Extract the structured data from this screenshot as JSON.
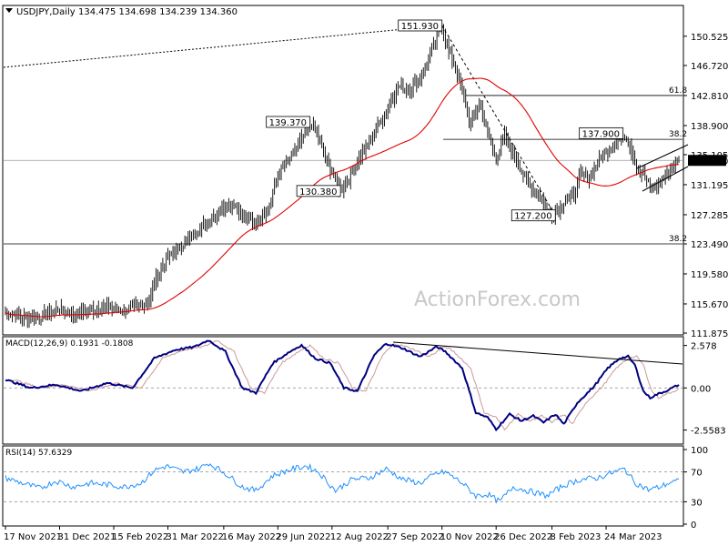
{
  "header": {
    "title": "USDJPY,Daily",
    "ohlc": "134.475 134.698 134.239 134.360"
  },
  "watermark": "ActionForex.com",
  "chart_data": {
    "type": "candlestick",
    "title": "USDJPY,Daily",
    "colors": {
      "price": "#000000",
      "ma": "#e00000",
      "macd": "#000080",
      "signal": "#cc9999",
      "rsi": "#1e90ff",
      "current": "#000000"
    },
    "x_ticks": [
      "17 Nov 2021",
      "31 Dec 2021",
      "15 Feb 2022",
      "31 Mar 2022",
      "16 May 2022",
      "29 Jun 2022",
      "12 Aug 2022",
      "27 Sep 2022",
      "10 Nov 2022",
      "26 Dec 2022",
      "8 Feb 2023",
      "24 Mar 2023"
    ],
    "price_axis": {
      "ticks": [
        "150.525",
        "146.720",
        "142.810",
        "138.900",
        "135.105",
        "131.195",
        "127.285",
        "123.490",
        "119.580",
        "115.670",
        "111.875"
      ],
      "ylim": [
        111.875,
        154.3
      ]
    },
    "price_keypoints": [
      [
        0,
        114.5
      ],
      [
        10,
        114.0
      ],
      [
        20,
        113.8
      ],
      [
        30,
        115.0
      ],
      [
        40,
        114.3
      ],
      [
        50,
        114.9
      ],
      [
        60,
        115.3
      ],
      [
        70,
        114.8
      ],
      [
        80,
        115.5
      ],
      [
        85,
        116.0
      ],
      [
        88,
        118.5
      ],
      [
        95,
        121.5
      ],
      [
        100,
        122.5
      ],
      [
        108,
        124.0
      ],
      [
        112,
        125.0
      ],
      [
        120,
        126.5
      ],
      [
        128,
        128.0
      ],
      [
        135,
        128.8
      ],
      [
        140,
        127.2
      ],
      [
        148,
        126.3
      ],
      [
        155,
        128.0
      ],
      [
        162,
        133.0
      ],
      [
        168,
        134.5
      ],
      [
        175,
        137.0
      ],
      [
        180,
        139.37
      ],
      [
        185,
        137.5
      ],
      [
        190,
        134.0
      ],
      [
        195,
        132.0
      ],
      [
        198,
        130.38
      ],
      [
        203,
        132.0
      ],
      [
        210,
        135.0
      ],
      [
        218,
        137.8
      ],
      [
        225,
        141.0
      ],
      [
        232,
        144.0
      ],
      [
        238,
        143.5
      ],
      [
        244,
        144.7
      ],
      [
        250,
        147.5
      ],
      [
        255,
        150.5
      ],
      [
        258,
        151.93
      ],
      [
        262,
        148.5
      ],
      [
        266,
        146.5
      ],
      [
        270,
        143.5
      ],
      [
        275,
        139.0
      ],
      [
        280,
        142.0
      ],
      [
        285,
        138.0
      ],
      [
        290,
        134.5
      ],
      [
        295,
        137.5
      ],
      [
        300,
        135.5
      ],
      [
        305,
        133.0
      ],
      [
        310,
        131.0
      ],
      [
        316,
        129.8
      ],
      [
        320,
        127.8
      ],
      [
        325,
        127.2
      ],
      [
        330,
        129.0
      ],
      [
        336,
        130.0
      ],
      [
        340,
        132.5
      ],
      [
        345,
        132.0
      ],
      [
        350,
        134.0
      ],
      [
        355,
        135.5
      ],
      [
        360,
        136.5
      ],
      [
        365,
        137.9
      ],
      [
        369,
        136.5
      ],
      [
        373,
        133.5
      ],
      [
        377,
        132.5
      ],
      [
        381,
        131.0
      ],
      [
        384,
        130.8
      ],
      [
        388,
        131.8
      ],
      [
        392,
        133.0
      ],
      [
        395,
        133.5
      ],
      [
        398,
        134.36
      ]
    ],
    "labels": [
      {
        "text": "151.930",
        "index": 258,
        "value": 151.93,
        "anchor": "left"
      },
      {
        "text": "139.370",
        "index": 180,
        "value": 139.37,
        "anchor": "left"
      },
      {
        "text": "130.380",
        "index": 198,
        "value": 130.38,
        "anchor": "left"
      },
      {
        "text": "137.900",
        "index": 365,
        "value": 137.9,
        "anchor": "left"
      },
      {
        "text": "127.200",
        "index": 325,
        "value": 127.2,
        "anchor": "left"
      }
    ],
    "current_price": "134.360",
    "horizontal_levels": [
      {
        "label": "61.8",
        "value": 142.81
      },
      {
        "label": "38.2",
        "value": 137.1
      },
      {
        "label": "38.2",
        "value": 123.49
      }
    ],
    "macd": {
      "label": "MACD(12,26,9) 0.1931 -0.1808",
      "ticks": [
        "2.578",
        "0.00",
        "-2.5583"
      ],
      "ylim": [
        -3.3,
        3.0
      ],
      "keypoints": [
        [
          0,
          0.5
        ],
        [
          15,
          0
        ],
        [
          30,
          0.2
        ],
        [
          45,
          -0.2
        ],
        [
          60,
          0.3
        ],
        [
          75,
          0
        ],
        [
          88,
          1.8
        ],
        [
          100,
          2.3
        ],
        [
          112,
          2.5
        ],
        [
          120,
          2.9
        ],
        [
          130,
          2.2
        ],
        [
          140,
          0
        ],
        [
          148,
          -0.3
        ],
        [
          158,
          1.5
        ],
        [
          168,
          2.2
        ],
        [
          175,
          2.6
        ],
        [
          183,
          1.8
        ],
        [
          192,
          1.5
        ],
        [
          200,
          0
        ],
        [
          208,
          -0.2
        ],
        [
          218,
          2.0
        ],
        [
          225,
          2.7
        ],
        [
          235,
          2.4
        ],
        [
          245,
          1.9
        ],
        [
          255,
          2.5
        ],
        [
          260,
          2.2
        ],
        [
          270,
          1.2
        ],
        [
          278,
          -1.5
        ],
        [
          285,
          -1.8
        ],
        [
          290,
          -2.5
        ],
        [
          298,
          -1.6
        ],
        [
          305,
          -2.0
        ],
        [
          312,
          -1.7
        ],
        [
          318,
          -2.1
        ],
        [
          325,
          -1.6
        ],
        [
          330,
          -2.2
        ],
        [
          338,
          -0.9
        ],
        [
          348,
          0.1
        ],
        [
          356,
          1.2
        ],
        [
          363,
          1.8
        ],
        [
          368,
          1.9
        ],
        [
          372,
          1.4
        ],
        [
          377,
          -0.2
        ],
        [
          381,
          -0.6
        ],
        [
          385,
          -0.4
        ],
        [
          390,
          -0.2
        ],
        [
          398,
          0.19
        ]
      ],
      "signal_shift": 3
    },
    "rsi": {
      "label": "RSI(14) 57.6329",
      "ticks": [
        "100",
        "70",
        "30",
        "0"
      ],
      "ylim": [
        0,
        100
      ],
      "keypoints": [
        [
          0,
          62
        ],
        [
          10,
          55
        ],
        [
          20,
          48
        ],
        [
          30,
          58
        ],
        [
          40,
          50
        ],
        [
          50,
          55
        ],
        [
          60,
          53
        ],
        [
          70,
          50
        ],
        [
          80,
          55
        ],
        [
          88,
          72
        ],
        [
          95,
          78
        ],
        [
          105,
          70
        ],
        [
          115,
          75
        ],
        [
          120,
          82
        ],
        [
          130,
          68
        ],
        [
          140,
          50
        ],
        [
          148,
          45
        ],
        [
          158,
          65
        ],
        [
          168,
          73
        ],
        [
          178,
          78
        ],
        [
          185,
          70
        ],
        [
          195,
          45
        ],
        [
          205,
          60
        ],
        [
          215,
          62
        ],
        [
          225,
          74
        ],
        [
          235,
          60
        ],
        [
          245,
          55
        ],
        [
          255,
          68
        ],
        [
          260,
          70
        ],
        [
          270,
          55
        ],
        [
          278,
          38
        ],
        [
          285,
          40
        ],
        [
          292,
          30
        ],
        [
          300,
          50
        ],
        [
          310,
          44
        ],
        [
          320,
          38
        ],
        [
          330,
          52
        ],
        [
          340,
          60
        ],
        [
          350,
          62
        ],
        [
          360,
          70
        ],
        [
          366,
          74
        ],
        [
          372,
          56
        ],
        [
          380,
          46
        ],
        [
          387,
          50
        ],
        [
          393,
          56
        ],
        [
          398,
          57.6
        ]
      ]
    }
  }
}
